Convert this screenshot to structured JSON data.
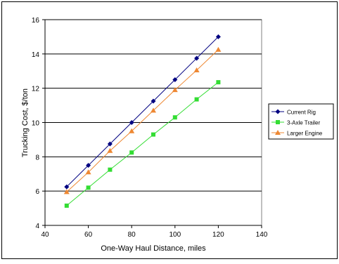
{
  "chart_data": {
    "type": "line",
    "title": "",
    "xlabel": "One-Way Haul Distance, miles",
    "ylabel": "Trucking Cost, $/ton",
    "xlim": [
      40,
      140
    ],
    "ylim": [
      4,
      16
    ],
    "xticks": [
      40,
      60,
      80,
      100,
      120,
      140
    ],
    "yticks": [
      4,
      6,
      8,
      10,
      12,
      14,
      16
    ],
    "grid": "horizontal",
    "legend_position": "right",
    "x": [
      50,
      60,
      70,
      80,
      90,
      100,
      110,
      120
    ],
    "series": [
      {
        "name": "Current Rig",
        "marker": "diamond",
        "color": "#000080",
        "values": [
          6.25,
          7.5,
          8.75,
          10.0,
          11.25,
          12.5,
          13.75,
          15.0
        ]
      },
      {
        "name": "3-Axle Trailer",
        "marker": "square",
        "color": "#33dd33",
        "values": [
          5.15,
          6.2,
          7.25,
          8.25,
          9.3,
          10.3,
          11.35,
          12.35
        ]
      },
      {
        "name": "Larger Engine",
        "marker": "triangle",
        "color": "#ee8833",
        "values": [
          5.95,
          7.1,
          8.35,
          9.5,
          10.7,
          11.9,
          13.05,
          14.25
        ]
      }
    ]
  }
}
